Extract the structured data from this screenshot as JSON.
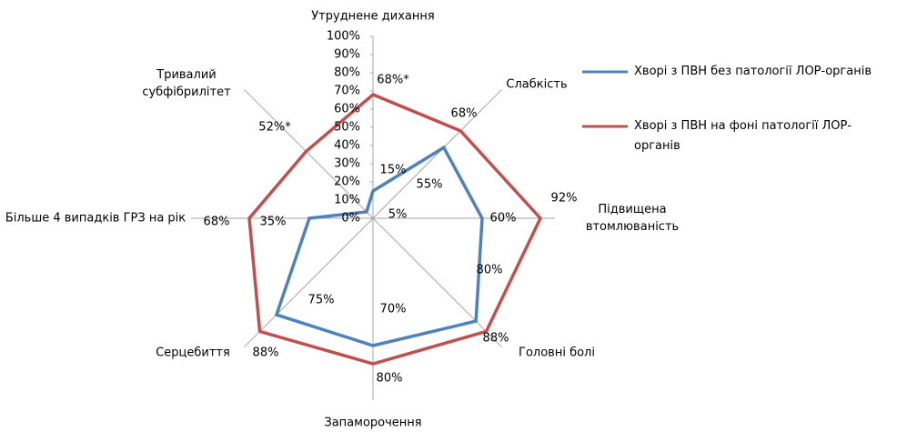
{
  "chart_data": {
    "type": "radar",
    "categories": [
      "Утруднене дихання",
      "Слабкість",
      "Підвищена втомлюваність",
      "Головні болі",
      "Запаморочення",
      "Серцебиття",
      "Більше 4 випадків ГРЗ на рік",
      "Тривалий субфібрилітет"
    ],
    "series": [
      {
        "name": "Хворі з ПВН без патології ЛОР-органів",
        "color": "#4f81bd",
        "values": [
          15,
          55,
          60,
          80,
          70,
          75,
          35,
          5
        ],
        "value_labels": [
          "15%",
          "55%",
          "60%",
          "80%",
          "70%",
          "75%",
          "35%",
          "5%"
        ]
      },
      {
        "name": "Хворі з ПВН на фоні патології ЛОР-органів",
        "color": "#c0504d",
        "values": [
          68,
          68,
          92,
          88,
          80,
          88,
          68,
          52
        ],
        "value_labels": [
          "68%*",
          "68%",
          "92%",
          "88%",
          "80%",
          "88%",
          "68%",
          "52%*"
        ]
      }
    ],
    "ylim": [
      0,
      100
    ],
    "yticks": [
      {
        "value": 0,
        "label": "0%"
      },
      {
        "value": 10,
        "label": "10%"
      },
      {
        "value": 20,
        "label": "20%"
      },
      {
        "value": 30,
        "label": "30%"
      },
      {
        "value": 40,
        "label": "40%"
      },
      {
        "value": 50,
        "label": "50%"
      },
      {
        "value": 60,
        "label": "60%"
      },
      {
        "value": 70,
        "label": "70%"
      },
      {
        "value": 80,
        "label": "80%"
      },
      {
        "value": 90,
        "label": "90%"
      },
      {
        "value": 100,
        "label": "100%"
      }
    ],
    "legend": "right"
  }
}
